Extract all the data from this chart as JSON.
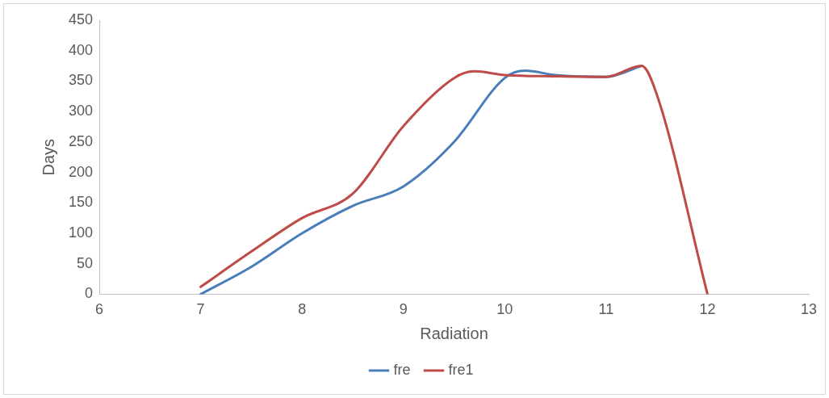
{
  "chart_data": {
    "type": "line",
    "xlabel": "Radiation",
    "ylabel": "Days",
    "xlim": [
      6,
      13
    ],
    "xticks": [
      6,
      7,
      8,
      9,
      10,
      11,
      12,
      13
    ],
    "ylim": [
      0,
      450
    ],
    "yticks": [
      0,
      50,
      100,
      150,
      200,
      250,
      300,
      350,
      400,
      450
    ],
    "grid": false,
    "legend": "bottom",
    "marker": "none",
    "line_style": "solid",
    "series": [
      {
        "name": "fre",
        "color": "#4a7ebb",
        "x": [
          7,
          7.5,
          8,
          8.5,
          9,
          9.5,
          10,
          10.2,
          10.5,
          11,
          11.35
        ],
        "values": [
          0,
          45,
          100,
          145,
          177,
          250,
          355,
          367,
          360,
          357,
          375
        ]
      },
      {
        "name": "fre1",
        "color": "#be4b48",
        "x": [
          7,
          7.5,
          8,
          8.5,
          9,
          9.5,
          9.7,
          10,
          10.5,
          11,
          11.35,
          11.5,
          12
        ],
        "values": [
          12,
          70,
          125,
          165,
          276,
          355,
          366,
          360,
          358,
          357,
          375,
          328,
          0
        ]
      }
    ]
  }
}
